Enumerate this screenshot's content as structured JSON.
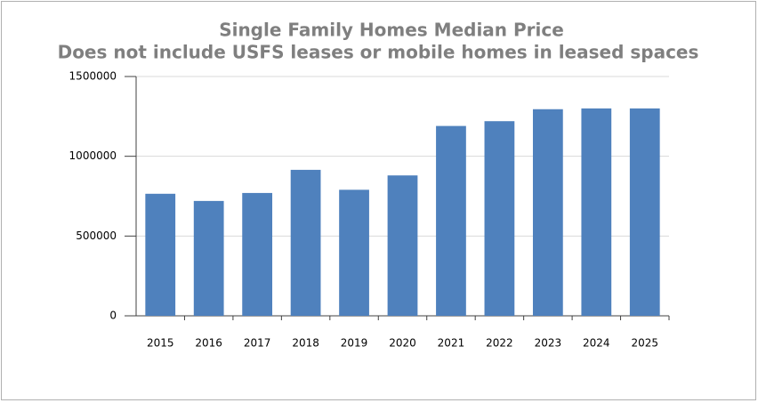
{
  "chart_data": {
    "type": "bar",
    "title": "Single Family Homes Median Price",
    "subtitle": "Does not include USFS leases or mobile homes in leased spaces",
    "categories": [
      "2015",
      "2016",
      "2017",
      "2018",
      "2019",
      "2020",
      "2021",
      "2022",
      "2023",
      "2024",
      "2025"
    ],
    "values": [
      765000,
      720000,
      770000,
      915000,
      790000,
      880000,
      1190000,
      1220000,
      1295000,
      1300000,
      1300000
    ],
    "color": "#4f81bd",
    "ylim": [
      0,
      1500000
    ],
    "yticks": [
      0,
      500000,
      1000000,
      1500000
    ],
    "grid": true
  }
}
